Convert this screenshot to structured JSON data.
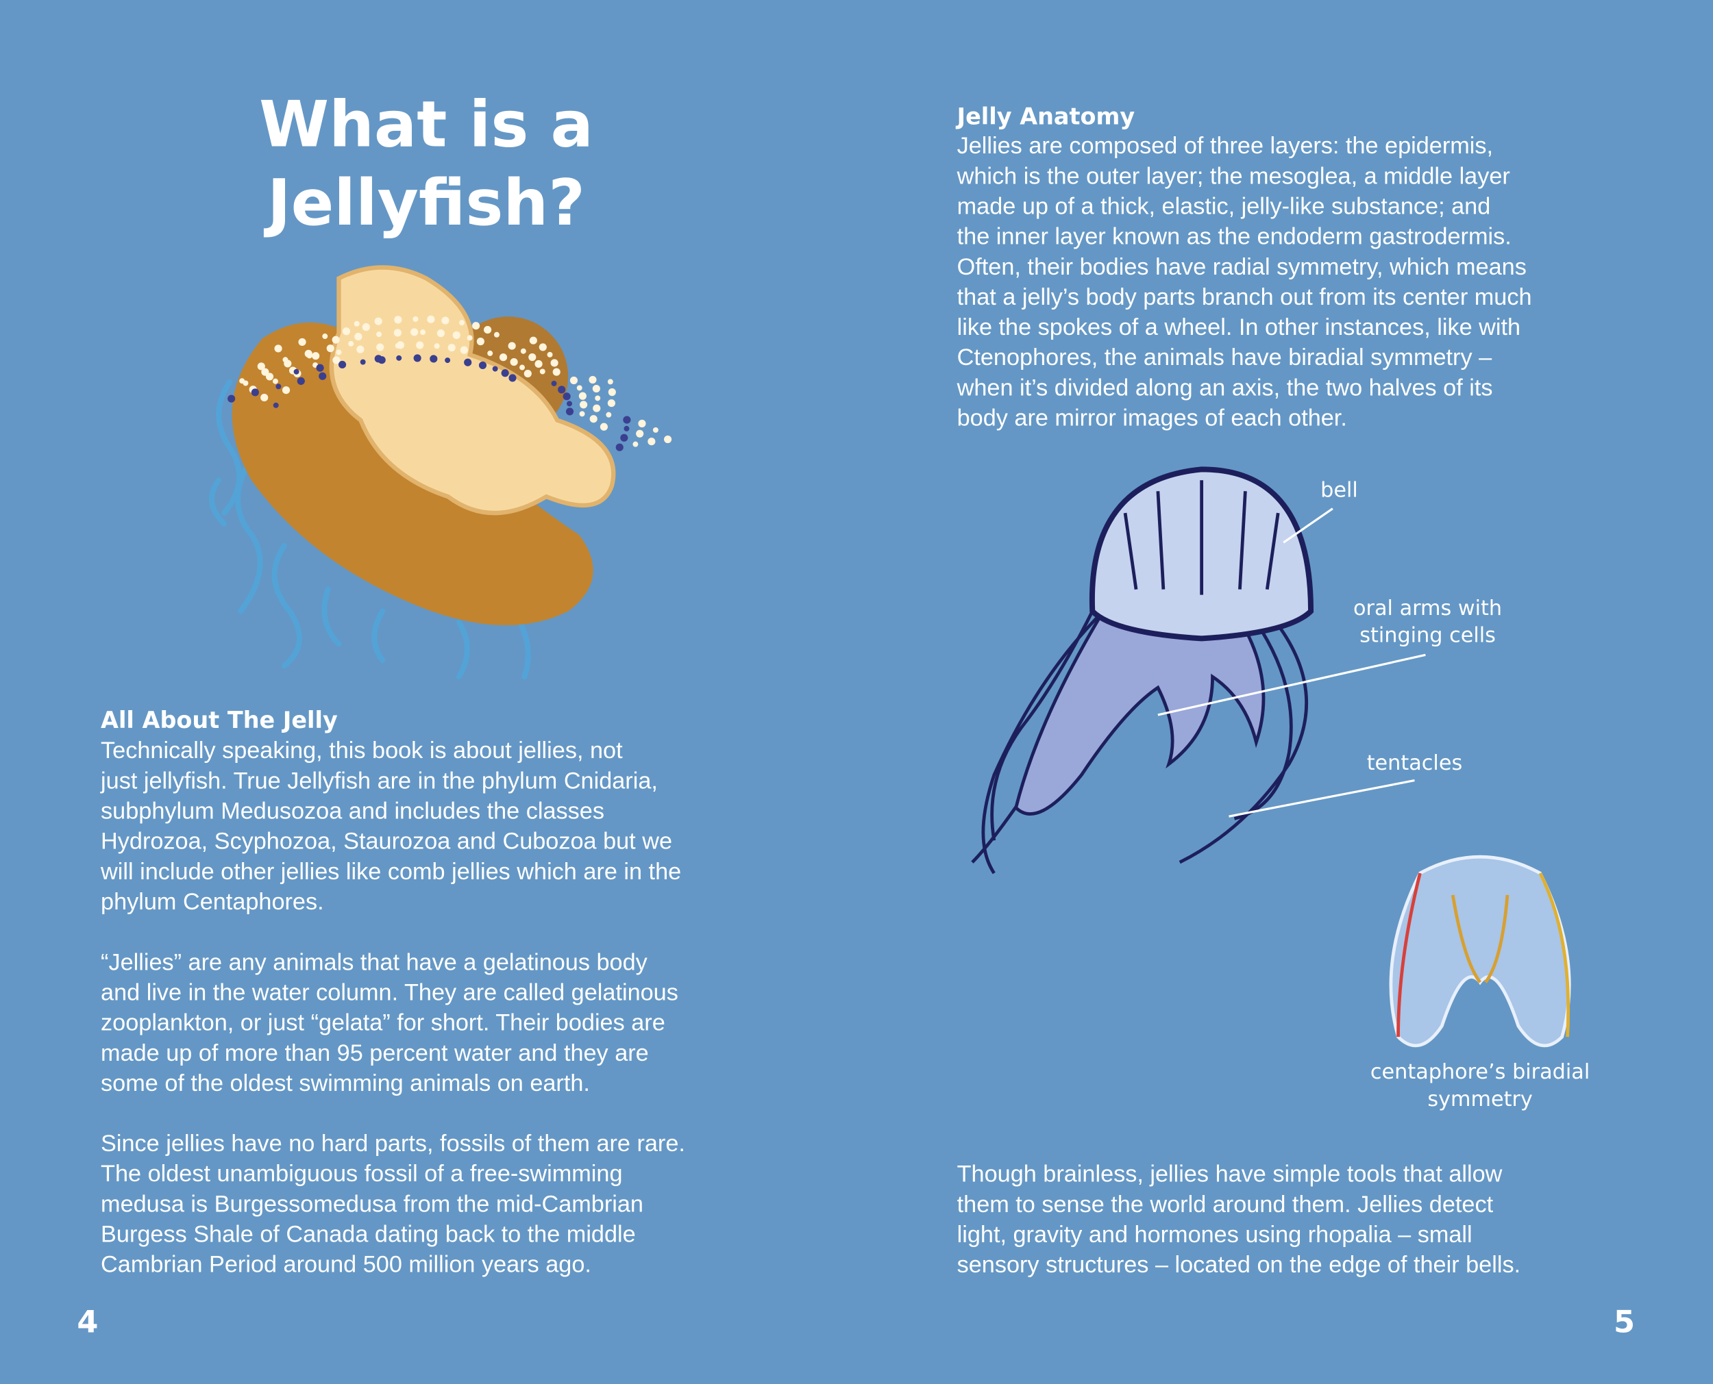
{
  "title": [
    "What is a",
    "Jellyfish?"
  ],
  "left": {
    "heading": "All About The Jelly",
    "paragraphs": [
      [
        "Technically speaking, this book is about jellies, not",
        "just jellyfish. True Jellyfish are in the phylum Cnidaria,",
        "subphylum Medusozoa and includes the classes",
        "Hydrozoa, Scyphozoa, Staurozoa and Cubozoa but we",
        "will include other jellies like comb jellies which are in the",
        "phylum Centaphores."
      ],
      [
        "“Jellies” are any animals that have a gelatinous body",
        "and live in the water column. They are called gelatinous",
        "zooplankton, or just “gelata” for short. Their bodies are",
        "made up of more than 95 percent water and they are",
        "some of the oldest swimming animals on earth."
      ],
      [
        "Since jellies have no hard parts, fossils of them are rare.",
        "The oldest unambiguous fossil of a free-swimming",
        "medusa is Burgessomedusa from the mid-Cambrian",
        "Burgess Shale of Canada dating back to the middle",
        "Cambrian Period around 500 million years ago."
      ]
    ]
  },
  "right": {
    "heading": "Jelly Anatomy",
    "paragraph": [
      "Jellies are composed of three layers: the epidermis,",
      "which is the outer layer; the mesoglea, a middle layer",
      "made up of a thick, elastic, jelly-like substance; and",
      "the inner layer known as the endoderm gastrodermis.",
      "Often, their bodies have radial symmetry, which means",
      "that a jelly’s body parts branch out from its center much",
      "like the spokes of a wheel. In other instances, like with",
      "Ctenophores, the animals have biradial symmetry –",
      "when it’s divided along an axis, the two halves of its",
      "body are mirror images of each other."
    ],
    "closing": [
      "Though brainless, jellies have simple tools that allow",
      "them to sense the world around them. Jellies detect",
      "light, gravity and hormones using rhopalia – small",
      "sensory structures – located on the edge of their bells."
    ]
  },
  "labels": {
    "bell": "bell",
    "oral_arms": [
      "oral arms with",
      "stinging cells"
    ],
    "tentacles": "tentacles",
    "symmetry": [
      "centaphore’s biradial",
      "symmetry"
    ]
  },
  "page_numbers": [
    "4",
    "5"
  ]
}
